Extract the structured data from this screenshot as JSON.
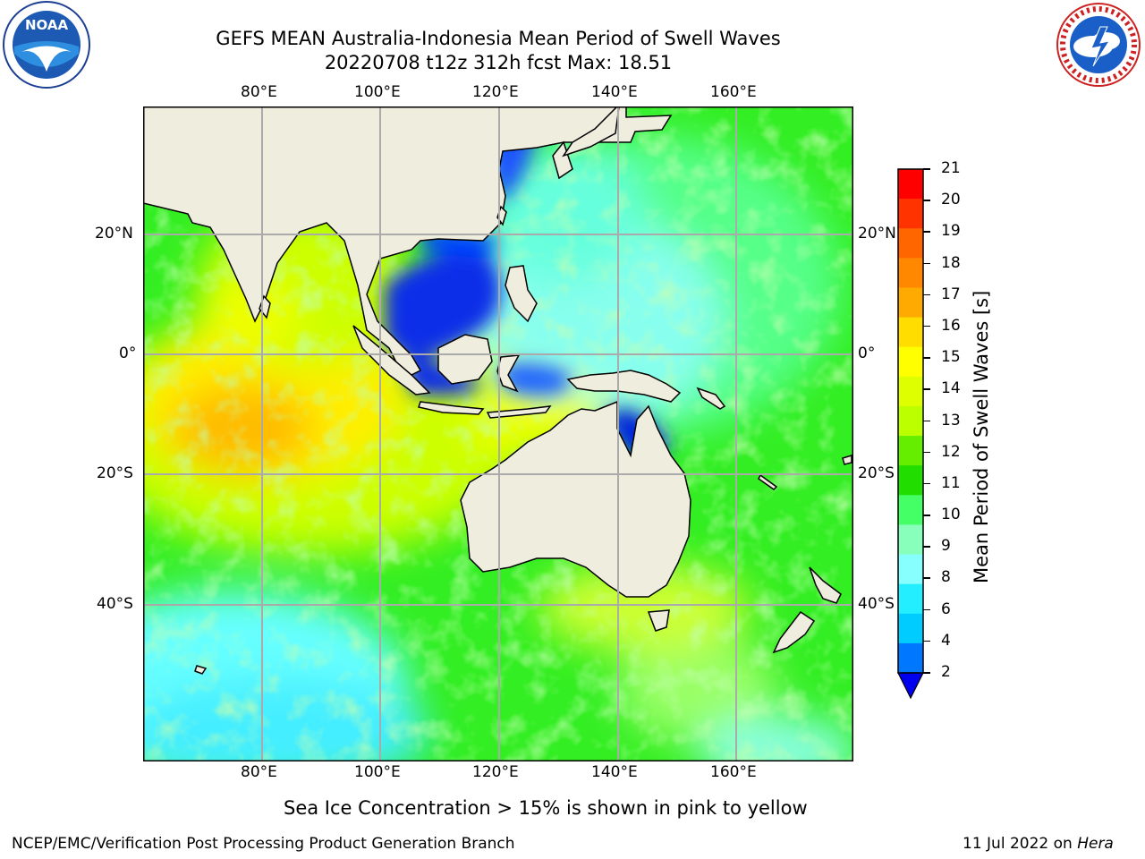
{
  "title_line1": "GEFS MEAN Australia-Indonesia Mean Period of Swell Waves",
  "title_line2": "20220708 t12z 312h fcst   Max: 18.51",
  "logos": {
    "left": "noaa-logo",
    "right": "nws-logo"
  },
  "lon_labels": [
    "80°E",
    "100°E",
    "120°E",
    "140°E",
    "160°E"
  ],
  "lat_labels": [
    "20°N",
    "0°",
    "20°S",
    "40°S"
  ],
  "colorbar": {
    "label": "Mean Period of Swell Waves [s]",
    "ticks": [
      "21",
      "20",
      "19",
      "18",
      "17",
      "16",
      "15",
      "14",
      "13",
      "12",
      "11",
      "10",
      "9",
      "8",
      "6",
      "4",
      "2"
    ],
    "colors": [
      "#ff0000",
      "#ff3300",
      "#ff6600",
      "#ff8800",
      "#ffaa00",
      "#ffdd00",
      "#ffff00",
      "#ddff00",
      "#bbff00",
      "#66ee00",
      "#22dd00",
      "#44ff66",
      "#88ffbb",
      "#88ffff",
      "#22eeff",
      "#00ccff",
      "#0077ff",
      "#0000ee"
    ]
  },
  "sea_ice_note": "Sea Ice Concentration > 15% is shown in pink to yellow",
  "footer_left": "NCEP/EMC/Verification Post Processing Product Generation Branch",
  "footer_right_date": "11 Jul 2022 on ",
  "footer_right_host": "Hera"
}
